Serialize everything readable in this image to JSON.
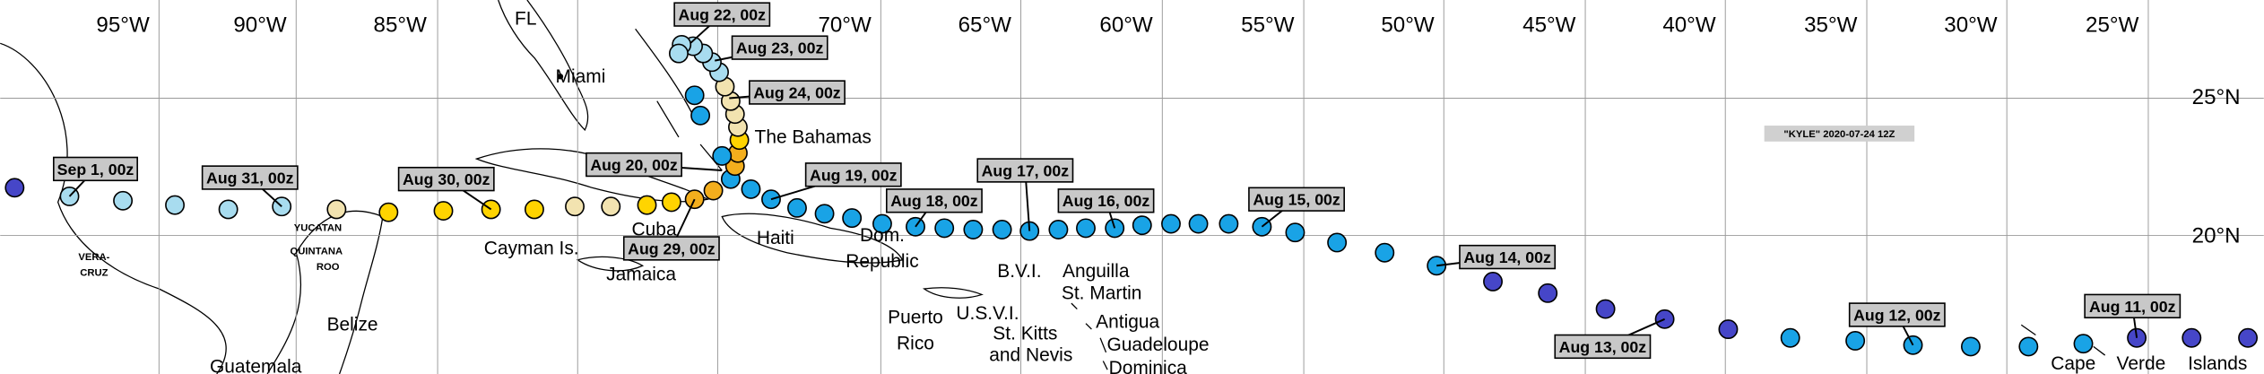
{
  "annotation": "\"KYLE\" 2020-07-24 12Z",
  "longitude_labels": [
    "95°W",
    "90°W",
    "85°W",
    "70°W",
    "65°W",
    "60°W",
    "55°W",
    "50°W",
    "45°W",
    "40°W",
    "35°W",
    "30°W",
    "25°W"
  ],
  "latitude_labels": [
    "25°N",
    "20°N"
  ],
  "date_labels": [
    "Aug 22, 00z",
    "Aug 23, 00z",
    "Aug 24, 00z",
    "Aug 20, 00z",
    "Aug 19, 00z",
    "Aug 17, 00z",
    "Aug 18, 00z",
    "Aug 16, 00z",
    "Aug 15, 00z",
    "Aug 14, 00z",
    "Aug 13, 00z",
    "Aug 12, 00z",
    "Aug 11, 00z",
    "Aug 29, 00z",
    "Aug 30, 00z",
    "Aug 31, 00z",
    "Sep 1, 00z"
  ],
  "places": [
    "FL",
    "Miami",
    "The Bahamas",
    "Cuba",
    "Cayman Is.",
    "Jamaica",
    "Haiti",
    "Dom.",
    "Republic",
    "Puerto",
    "Rico",
    "B.V.I.",
    "U.S.V.I.",
    "Anguilla",
    "St. Martin",
    "Antigua",
    "St. Kitts",
    "and Nevis",
    "Guadeloupe",
    "Dominica",
    "Belize",
    "Guatemala",
    "Cape",
    "Verde",
    "Islands"
  ],
  "small_places": [
    "YUCATAN",
    "QUINTANA",
    "ROO",
    "VERA-",
    "CRUZ"
  ]
}
